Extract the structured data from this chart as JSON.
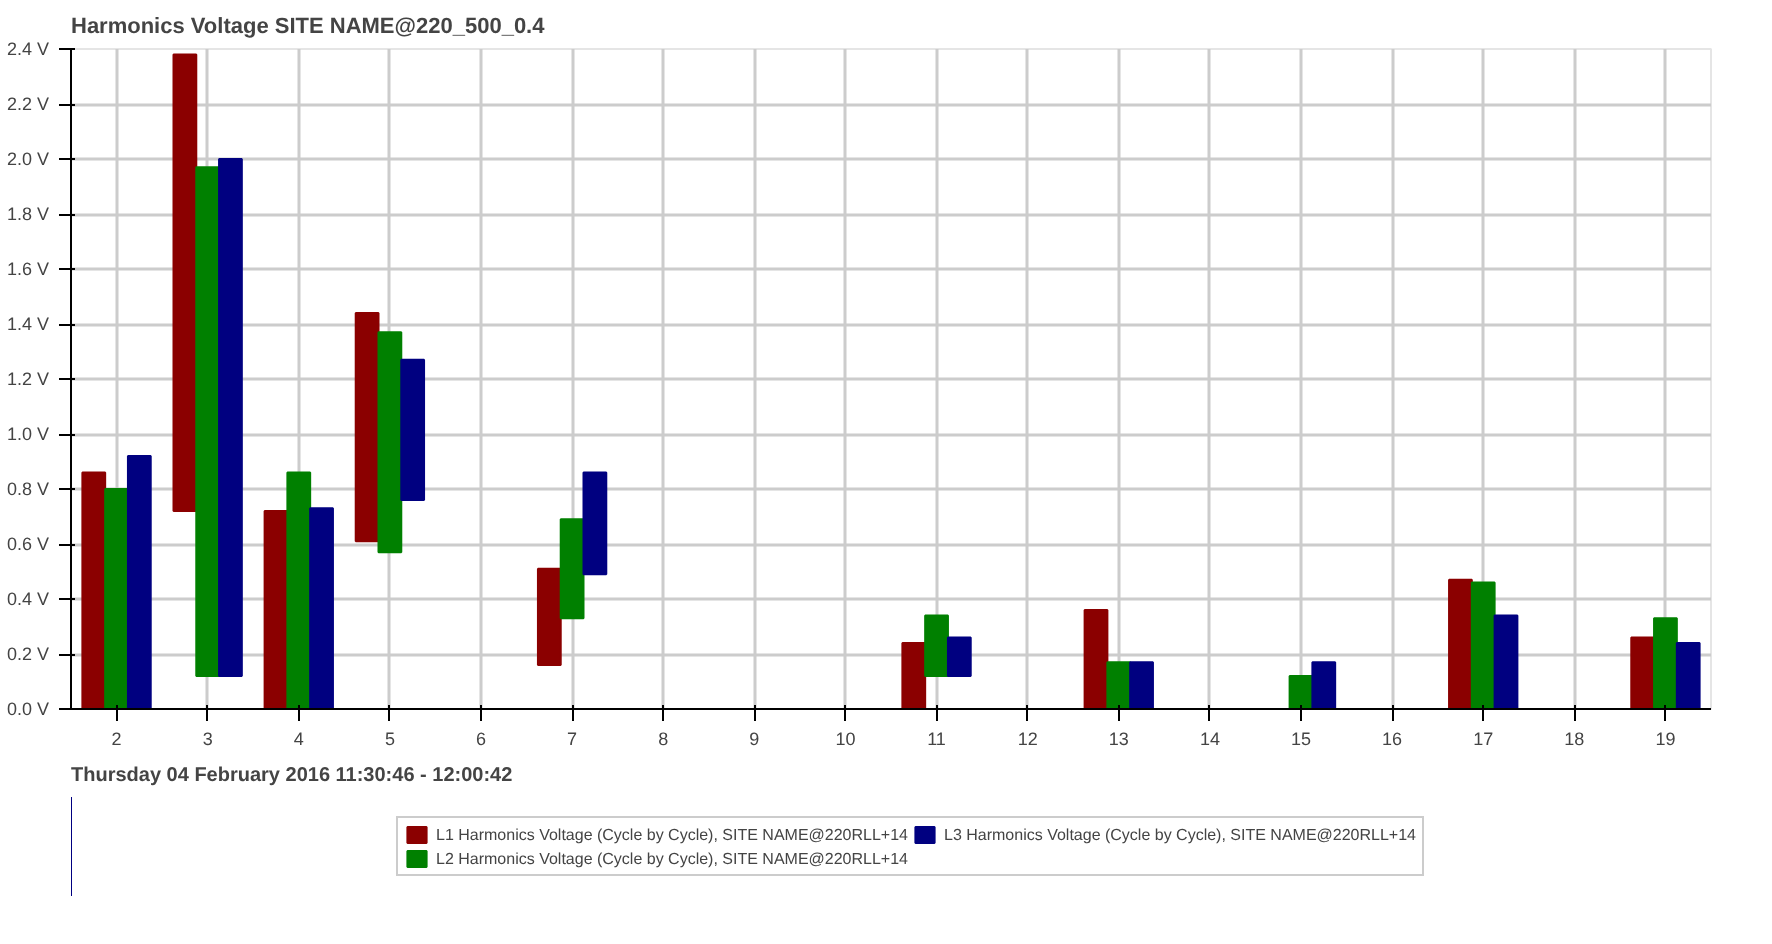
{
  "chart_data": {
    "type": "bar",
    "title": "Harmonics Voltage SITE NAME@220_500_0.4",
    "categories": [
      "2",
      "3",
      "4",
      "5",
      "6",
      "7",
      "8",
      "9",
      "10",
      "11",
      "12",
      "13",
      "14",
      "15",
      "16",
      "17",
      "18",
      "19"
    ],
    "series": [
      {
        "name": "L1 Harmonics Voltage (Cycle by Cycle), SITE NAME@220RLL+14",
        "color": "#8b0000",
        "base": [
          0,
          0.72,
          0,
          0.61,
          0,
          0.16,
          0,
          0,
          0,
          0,
          0,
          0,
          0,
          0,
          0,
          0,
          0,
          0
        ],
        "values": [
          0.86,
          1.66,
          0.72,
          0.83,
          0,
          0.35,
          0,
          0,
          0,
          0.24,
          0,
          0.36,
          0,
          0,
          0,
          0.47,
          0,
          0.26
        ]
      },
      {
        "name": "L2 Harmonics Voltage (Cycle by Cycle), SITE NAME@220RLL+14",
        "color": "#008000",
        "base": [
          0,
          0.12,
          0,
          0.57,
          0,
          0.33,
          0,
          0,
          0,
          0.12,
          0,
          0,
          0,
          0,
          0,
          0,
          0,
          0
        ],
        "values": [
          0.8,
          1.85,
          0.86,
          0.8,
          0,
          0.36,
          0,
          0,
          0,
          0.22,
          0,
          0.17,
          0,
          0.12,
          0,
          0.46,
          0,
          0.33
        ]
      },
      {
        "name": "L3 Harmonics Voltage (Cycle by Cycle), SITE NAME@220RLL+14",
        "color": "#000080",
        "base": [
          0,
          0.12,
          0,
          0.76,
          0,
          0.49,
          0,
          0,
          0,
          0.12,
          0,
          0,
          0,
          0,
          0,
          0,
          0,
          0
        ],
        "values": [
          0.92,
          1.88,
          0.73,
          0.51,
          0,
          0.37,
          0,
          0,
          0,
          0.14,
          0,
          0.17,
          0,
          0.17,
          0,
          0.34,
          0,
          0.24
        ]
      }
    ],
    "ylim": [
      0,
      2.4
    ],
    "yticks": [
      {
        "value": 0,
        "label": "0.0 V"
      },
      {
        "value": 0.2,
        "label": "0.2 V"
      },
      {
        "value": 0.4,
        "label": "0.4 V"
      },
      {
        "value": 0.6,
        "label": "0.6 V"
      },
      {
        "value": 0.8,
        "label": "0.8 V"
      },
      {
        "value": 1.0,
        "label": "1.0 V"
      },
      {
        "value": 1.2,
        "label": "1.2 V"
      },
      {
        "value": 1.4,
        "label": "1.4 V"
      },
      {
        "value": 1.6,
        "label": "1.6 V"
      },
      {
        "value": 1.8,
        "label": "1.8 V"
      },
      {
        "value": 2.0,
        "label": "2.0 V"
      },
      {
        "value": 2.2,
        "label": "2.2 V"
      },
      {
        "value": 2.4,
        "label": "2.4 V"
      }
    ],
    "grid": true,
    "legend": "bottom",
    "annotations": [
      "Thursday 04 February 2016 11:30:46 - 12:00:42"
    ]
  }
}
